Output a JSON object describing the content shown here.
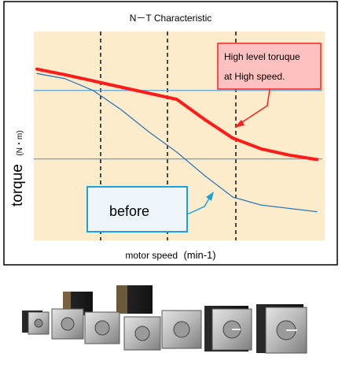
{
  "chart_data": {
    "type": "line",
    "title": "N－T Characteristic",
    "xlabel": "motor speed",
    "xunit": "(min-1)",
    "ylabel": "torque",
    "yunit": "(N・m)",
    "x_ticks_shown": false,
    "y_ticks_shown": false,
    "grid": "vertical dashed lines at four speeds, horizontal light-blue reference lines at two torque levels",
    "x": [
      0,
      10,
      20,
      30,
      40,
      50,
      60,
      70,
      80,
      90,
      100
    ],
    "series": [
      {
        "name": "",
        "color": "#ff1a1a",
        "values": [
          62,
          57,
          51.5,
          46,
          40.5,
          35,
          17,
          0.5,
          -9,
          -14.5,
          -18.5
        ]
      },
      {
        "name": "before",
        "color": "#2e75b6",
        "values": [
          58,
          53.5,
          43,
          26,
          6,
          -12,
          -33,
          -52,
          -59,
          -62,
          -65
        ]
      }
    ],
    "reference_lines": [
      43,
      -18
    ],
    "annotations": [
      {
        "text_lines": [
          "High level toruque",
          "at High speed."
        ],
        "fill": "#ffc0c0",
        "border": "#ff2020"
      },
      {
        "text": "before",
        "fill": "#eef6fc",
        "border": "#1ea0d8"
      }
    ],
    "colors": {
      "plot_background": "#fdeccc",
      "frame": "#000000"
    }
  },
  "product_image": {
    "description_icon": "stepping-motors-photo"
  }
}
